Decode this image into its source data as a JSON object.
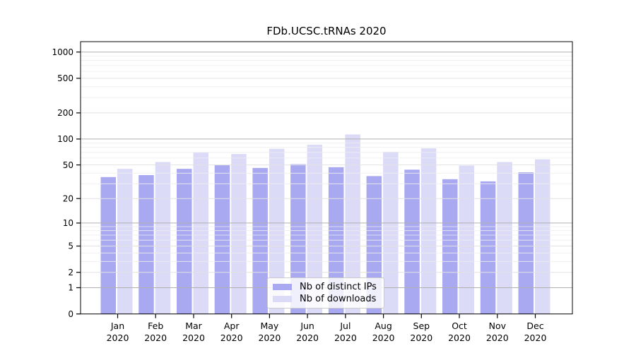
{
  "chart_data": {
    "type": "bar",
    "title": "FDb.UCSC.tRNAs 2020",
    "categories": [
      "Jan 2020",
      "Feb 2020",
      "Mar 2020",
      "Apr 2020",
      "May 2020",
      "Jun 2020",
      "Jul 2020",
      "Aug 2020",
      "Sep 2020",
      "Oct 2020",
      "Nov 2020",
      "Dec 2020"
    ],
    "month_labels": [
      "Jan",
      "Feb",
      "Mar",
      "Apr",
      "May",
      "Jun",
      "Jul",
      "Aug",
      "Sep",
      "Oct",
      "Nov",
      "Dec"
    ],
    "year_label": "2020",
    "series": [
      {
        "name": "Nb of distinct IPs",
        "color": "#a9a9f1",
        "values": [
          36,
          38,
          45,
          50,
          46,
          51,
          47,
          37,
          44,
          34,
          32,
          41
        ]
      },
      {
        "name": "Nb of downloads",
        "color": "#dbdbf8",
        "values": [
          45,
          54,
          70,
          67,
          77,
          86,
          113,
          71,
          78,
          49,
          54,
          58
        ]
      }
    ],
    "yscale": "log1p",
    "ylim": [
      0,
      1315
    ],
    "yticks": [
      0,
      1,
      2,
      5,
      10,
      20,
      50,
      100,
      200,
      500,
      1000
    ],
    "yticks_emphasized": [
      1,
      10,
      100,
      1000
    ],
    "yticks_light": [
      2,
      5,
      20,
      50,
      200,
      500
    ],
    "minor_gridlines": [
      3,
      4,
      6,
      7,
      8,
      9,
      30,
      40,
      60,
      70,
      80,
      90,
      300,
      400,
      600,
      700,
      800,
      900
    ],
    "grid": true,
    "legend_position": "lower center"
  },
  "colors": {
    "bar_distinct_ips": "#a9a9f1",
    "bar_downloads": "#dbdbf8",
    "grid_emphasized": "#b0b0b0",
    "grid_light": "#e2e2e2",
    "grid_minor": "#ededed",
    "axis": "#000000",
    "tick_text": "#000000",
    "legend_border": "#cccccc"
  }
}
